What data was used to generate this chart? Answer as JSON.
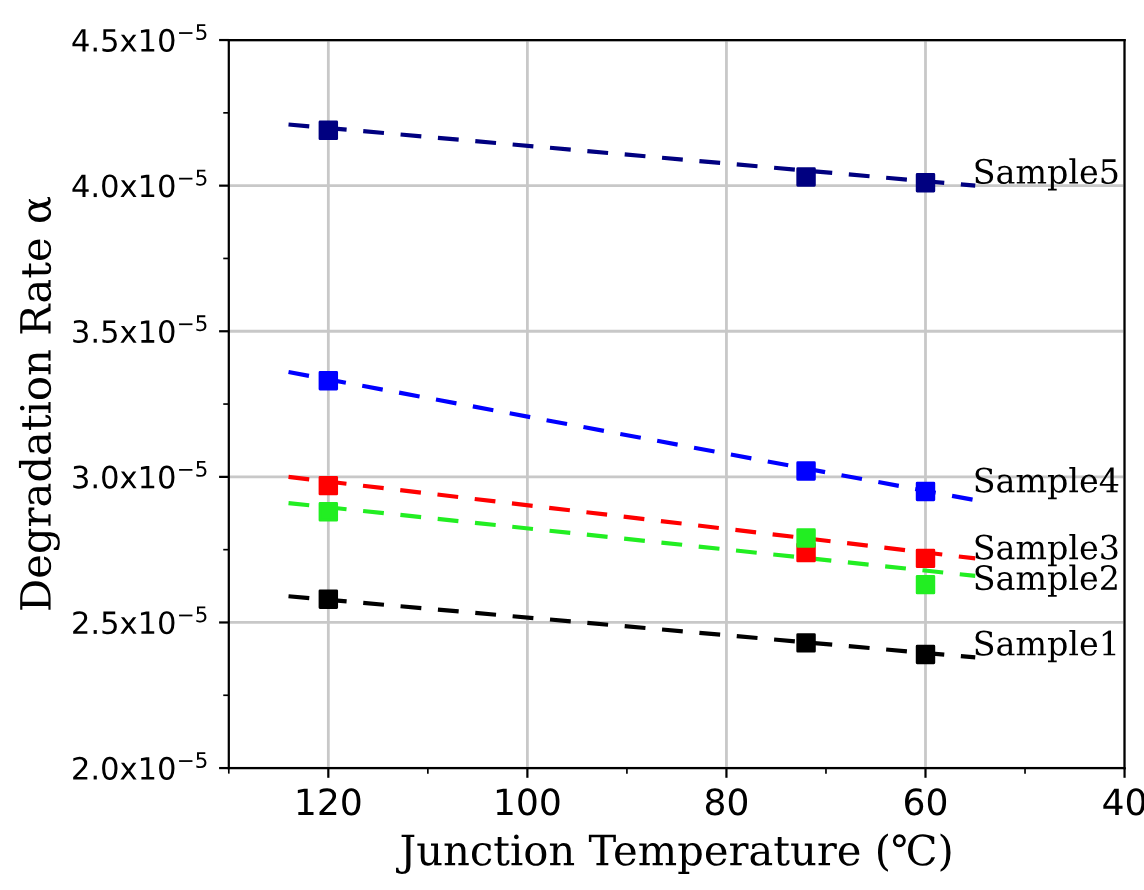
{
  "chart_data": {
    "type": "line",
    "xlabel": "Junction Temperature (℃)",
    "ylabel": "Degradation Rate α",
    "xlim": [
      130,
      40
    ],
    "xticks": [
      120,
      100,
      80,
      60,
      40
    ],
    "ylim": [
      2e-05,
      4.5e-05
    ],
    "yticks": [
      {
        "value": 2e-05,
        "label": "2.0x10$^{−5}$"
      },
      {
        "value": 2.5e-05,
        "label": "2.5x10$^{−5}$"
      },
      {
        "value": 3e-05,
        "label": "3.0x10$^{−5}$"
      },
      {
        "value": 3.5e-05,
        "label": "3.5x10$^{−5}$"
      },
      {
        "value": 4e-05,
        "label": "4.0x10$^{−5}$"
      },
      {
        "value": 4.5e-05,
        "label": "4.5x10$^{−5}$"
      }
    ],
    "grid": true,
    "marker": "square",
    "legend": false,
    "series": [
      {
        "type": "scatter",
        "name": "Sample5",
        "color": "#000080",
        "x": [
          120,
          72,
          60
        ],
        "values": [
          4.19e-05,
          4.03e-05,
          4.01e-05
        ]
      },
      {
        "type": "scatter",
        "name": "Sample4",
        "color": "#0000ff",
        "x": [
          120,
          72,
          60
        ],
        "values": [
          3.33e-05,
          3.02e-05,
          2.95e-05
        ]
      },
      {
        "type": "scatter",
        "name": "Sample3",
        "color": "#ff0000",
        "x": [
          120,
          72,
          60
        ],
        "values": [
          2.97e-05,
          2.74e-05,
          2.72e-05
        ]
      },
      {
        "type": "scatter",
        "name": "Sample2",
        "color": "#22ee22",
        "x": [
          120,
          72,
          60
        ],
        "values": [
          2.88e-05,
          2.79e-05,
          2.63e-05
        ]
      },
      {
        "type": "scatter",
        "name": "Sample1",
        "color": "#000000",
        "x": [
          120,
          72,
          60
        ],
        "values": [
          2.58e-05,
          2.43e-05,
          2.39e-05
        ]
      },
      {
        "marker": "none",
        "line_style": "dashed",
        "color": "#000080",
        "x": [
          124,
          55
        ],
        "values": [
          4.21e-05,
          4e-05
        ]
      },
      {
        "marker": "none",
        "line_style": "dashed",
        "color": "#0000ff",
        "x": [
          124,
          55
        ],
        "values": [
          3.36e-05,
          2.92e-05
        ]
      },
      {
        "marker": "none",
        "line_style": "dashed",
        "color": "#ff0000",
        "x": [
          124,
          55
        ],
        "values": [
          3e-05,
          2.72e-05
        ]
      },
      {
        "marker": "none",
        "line_style": "dashed",
        "color": "#22ee22",
        "x": [
          124,
          55
        ],
        "values": [
          2.91e-05,
          2.66e-05
        ]
      },
      {
        "marker": "none",
        "line_style": "dashed",
        "color": "#000000",
        "x": [
          124,
          55
        ],
        "values": [
          2.59e-05,
          2.38e-05
        ]
      }
    ]
  }
}
